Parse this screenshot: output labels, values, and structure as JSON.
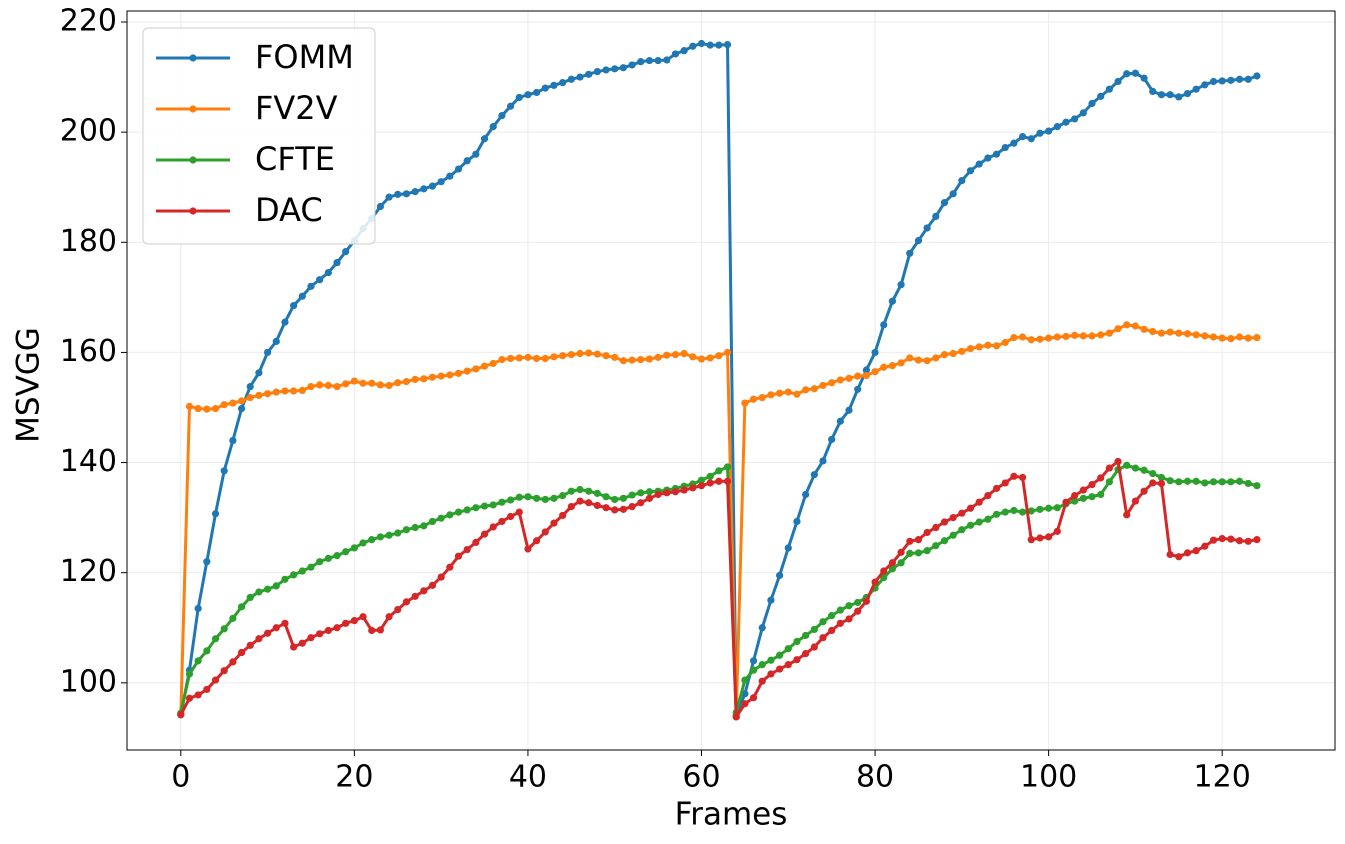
{
  "chart_data": {
    "type": "line",
    "xlabel": "Frames",
    "ylabel": "MSVGG",
    "xlim": [
      -6.2,
      133.0
    ],
    "ylim": [
      87.8,
      222.0
    ],
    "xticks": [
      0,
      20,
      40,
      60,
      80,
      100,
      120
    ],
    "yticks": [
      100,
      120,
      140,
      160,
      180,
      200,
      220
    ],
    "grid": true,
    "legend": "upper left",
    "x": [
      0,
      1,
      2,
      3,
      4,
      5,
      6,
      7,
      8,
      9,
      10,
      11,
      12,
      13,
      14,
      15,
      16,
      17,
      18,
      19,
      20,
      21,
      22,
      23,
      24,
      25,
      26,
      27,
      28,
      29,
      30,
      31,
      32,
      33,
      34,
      35,
      36,
      37,
      38,
      39,
      40,
      41,
      42,
      43,
      44,
      45,
      46,
      47,
      48,
      49,
      50,
      51,
      52,
      53,
      54,
      55,
      56,
      57,
      58,
      59,
      60,
      61,
      62,
      63,
      64,
      65,
      66,
      67,
      68,
      69,
      70,
      71,
      72,
      73,
      74,
      75,
      76,
      77,
      78,
      79,
      80,
      81,
      82,
      83,
      84,
      85,
      86,
      87,
      88,
      89,
      90,
      91,
      92,
      93,
      94,
      95,
      96,
      97,
      98,
      99,
      100,
      101,
      102,
      103,
      104,
      105,
      106,
      107,
      108,
      109,
      110,
      111,
      112,
      113,
      114,
      115,
      116,
      117,
      118,
      119,
      120,
      121,
      122,
      123,
      124
    ],
    "series": [
      {
        "name": "FOMM",
        "color": "#1f77b4",
        "values": [
          94.2,
          102.3,
          113.5,
          122,
          130.7,
          138.5,
          144,
          149.8,
          153.8,
          156.3,
          160,
          162,
          165.5,
          168.5,
          170.2,
          172,
          173.2,
          174.5,
          176.3,
          178.3,
          180.3,
          182.5,
          184.3,
          186.5,
          188.2,
          188.7,
          188.8,
          189.2,
          189.7,
          190.2,
          191,
          192,
          193.3,
          194.8,
          196,
          198.8,
          201,
          203,
          204.7,
          206.3,
          206.8,
          207.2,
          208,
          208.5,
          209,
          209.6,
          210,
          210.5,
          211,
          211.3,
          211.5,
          211.7,
          212.2,
          212.8,
          213,
          213,
          213.1,
          214.2,
          214.8,
          215.6,
          216.1,
          215.8,
          215.8,
          215.9,
          94,
          98,
          104,
          110,
          115,
          119.5,
          124.5,
          129.3,
          134.2,
          137.8,
          140.3,
          144.2,
          147.5,
          149.5,
          153.3,
          156.8,
          160,
          165,
          169.3,
          172.3,
          178,
          180.3,
          182.6,
          184.7,
          187.2,
          188.8,
          191.2,
          193,
          194.2,
          195.3,
          196,
          197.2,
          198,
          199.2,
          198.8,
          199.8,
          200.2,
          201,
          201.8,
          202.4,
          203.5,
          205.2,
          206.5,
          207.8,
          209.2,
          210.6,
          210.7,
          209.8,
          207.4,
          206.8,
          206.8,
          206.4,
          207,
          207.8,
          208.6,
          209.2,
          209.3,
          209.4,
          209.6,
          209.6,
          210.2
        ]
      },
      {
        "name": "FV2V",
        "color": "#ff7f0e",
        "values": [
          94.2,
          150.2,
          149.8,
          149.7,
          149.8,
          150.5,
          150.8,
          151.2,
          151.8,
          152.2,
          152.5,
          152.8,
          153,
          153,
          153.1,
          153.8,
          154.1,
          154,
          153.8,
          154.3,
          154.8,
          154.4,
          154.4,
          154.1,
          154,
          154.5,
          154.7,
          155.1,
          155.2,
          155.5,
          155.7,
          155.9,
          156.2,
          156.6,
          157,
          157.5,
          158,
          158.7,
          158.9,
          159,
          159.1,
          158.9,
          158.9,
          159.2,
          159.4,
          159.6,
          159.8,
          159.9,
          159.7,
          159.4,
          159.1,
          158.5,
          158.6,
          158.7,
          158.8,
          159.1,
          159.5,
          159.6,
          159.8,
          159.2,
          158.8,
          159,
          159.4,
          160,
          93.8,
          150.8,
          151.5,
          151.8,
          152.3,
          152.6,
          152.8,
          152.4,
          153.2,
          153.4,
          154,
          154.5,
          155,
          155.3,
          155.7,
          155.8,
          156.5,
          157.3,
          157.6,
          158.1,
          159,
          158.6,
          158.5,
          159,
          159.6,
          159.8,
          160.2,
          160.7,
          161,
          161.3,
          161.2,
          161.8,
          162.7,
          162.8,
          162.3,
          162.4,
          162.6,
          162.8,
          162.9,
          163.1,
          163,
          163,
          163.2,
          163.5,
          164.3,
          165,
          164.8,
          164.2,
          163.8,
          163.5,
          163.7,
          163.5,
          163.4,
          163.2,
          163,
          162.8,
          162.6,
          162.5,
          162.8,
          162.6,
          162.7
        ]
      },
      {
        "name": "CFTE",
        "color": "#2ca02c",
        "values": [
          94.5,
          101.6,
          104,
          105.8,
          108,
          109.8,
          111.7,
          113.8,
          115.5,
          116.5,
          117,
          117.6,
          118.8,
          119.6,
          120.3,
          121,
          122,
          122.6,
          123.1,
          123.8,
          124.5,
          125.4,
          126,
          126.5,
          126.8,
          127.2,
          127.8,
          128.2,
          128.5,
          129.3,
          129.9,
          130.5,
          131,
          131.4,
          131.8,
          132.1,
          132.3,
          132.8,
          133.2,
          133.7,
          133.8,
          133.5,
          133.3,
          133.5,
          134,
          134.8,
          135.1,
          134.8,
          134.4,
          133.8,
          133.3,
          133.5,
          134.1,
          134.5,
          134.7,
          134.8,
          135,
          135.3,
          135.7,
          136.1,
          136.8,
          137.5,
          138.5,
          139.2,
          94.6,
          100.5,
          102.3,
          103.3,
          104.1,
          105,
          106.2,
          107.5,
          108.6,
          109.7,
          111.1,
          112.2,
          113.2,
          114,
          114.6,
          115.5,
          117.2,
          119.1,
          120.7,
          121.8,
          123.5,
          123.6,
          124,
          124.9,
          125.8,
          126.8,
          127.8,
          128.6,
          129.2,
          129.7,
          130.6,
          131,
          131.3,
          131,
          131.2,
          131.5,
          131.7,
          131.8,
          132.5,
          133,
          133.5,
          133.8,
          134.2,
          136.5,
          138.7,
          139.5,
          139,
          138.6,
          138,
          137.3,
          136.7,
          136.5,
          136.6,
          136.6,
          136.3,
          136.5,
          136.5,
          136.5,
          136.6,
          136.2,
          135.8
        ]
      },
      {
        "name": "DAC",
        "color": "#d62728",
        "values": [
          94.2,
          97.2,
          97.8,
          98.8,
          100.5,
          102.2,
          103.8,
          105.5,
          106.8,
          108,
          109,
          110,
          110.8,
          106.5,
          107.2,
          108.2,
          108.9,
          109.5,
          110,
          110.8,
          111.3,
          112,
          109.5,
          109.6,
          112,
          113.3,
          114.7,
          115.7,
          116.7,
          117.7,
          119.2,
          121,
          123,
          124.2,
          125.5,
          127,
          128.3,
          129.3,
          130.2,
          131,
          124.3,
          125.8,
          127.4,
          129,
          130.4,
          132,
          133,
          132.7,
          132.2,
          131.8,
          131.4,
          131.5,
          132,
          132.7,
          133.5,
          134.2,
          134.5,
          134.7,
          135,
          135.4,
          135.8,
          136.3,
          136.6,
          136.6,
          93.8,
          96.2,
          97.3,
          100.3,
          101.6,
          102.5,
          103.3,
          104.2,
          105.3,
          106.5,
          108.2,
          109.5,
          110.8,
          111.6,
          113,
          114.8,
          118.3,
          120.3,
          121.8,
          123.7,
          125.7,
          126,
          127.3,
          128.2,
          129.2,
          130,
          130.8,
          131.7,
          132.8,
          134,
          135.3,
          136.3,
          137.5,
          137.3,
          126,
          126.3,
          126.5,
          127.5,
          132.8,
          134,
          135,
          136,
          137.2,
          139,
          140.2,
          130.5,
          133,
          134.8,
          136.3,
          136.2,
          123.3,
          122.9,
          123.6,
          124,
          124.8,
          125.9,
          126.2,
          126.1,
          125.8,
          125.7,
          126
        ]
      }
    ]
  }
}
